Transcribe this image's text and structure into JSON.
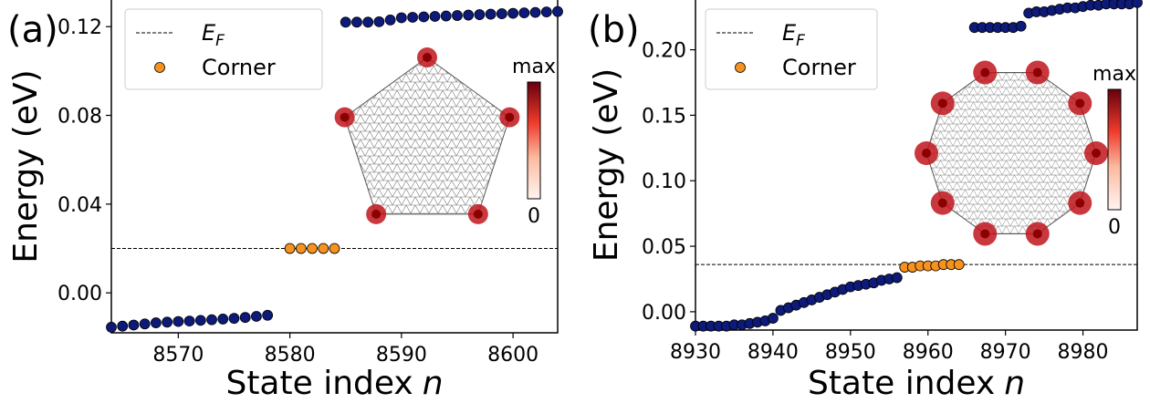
{
  "chart_data": [
    {
      "panel_label": "(a)",
      "type": "scatter",
      "xlabel": "State index",
      "xlabel_var": "n",
      "ylabel": "Energy (eV)",
      "xlim": [
        8564,
        8604
      ],
      "ylim": [
        -0.018,
        0.132
      ],
      "xticks": [
        8570,
        8580,
        8590,
        8600
      ],
      "yticks": [
        0.0,
        0.04,
        0.08,
        0.12
      ],
      "ytick_labels": [
        "0.00",
        "0.04",
        "0.08",
        "0.12"
      ],
      "fermi_level": 0.02,
      "legend": {
        "placement": "top-left",
        "entries": [
          "E_F",
          "Corner"
        ]
      },
      "series": [
        {
          "role": "bulk",
          "color": "#0d1a7a",
          "x": [
            8564,
            8565,
            8566,
            8567,
            8568,
            8569,
            8570,
            8571,
            8572,
            8573,
            8574,
            8575,
            8576,
            8577,
            8578,
            8585,
            8586,
            8587,
            8588,
            8589,
            8590,
            8591,
            8592,
            8593,
            8594,
            8595,
            8596,
            8597,
            8598,
            8599,
            8600,
            8601,
            8602,
            8603,
            8604
          ],
          "y": [
            -0.0155,
            -0.015,
            -0.0145,
            -0.014,
            -0.0135,
            -0.0132,
            -0.0129,
            -0.0127,
            -0.0124,
            -0.0121,
            -0.0118,
            -0.0115,
            -0.0111,
            -0.0106,
            -0.0101,
            0.122,
            0.122,
            0.122,
            0.1222,
            0.123,
            0.124,
            0.1242,
            0.1244,
            0.1246,
            0.1248,
            0.125,
            0.1252,
            0.1254,
            0.1256,
            0.1258,
            0.126,
            0.1262,
            0.1264,
            0.1266,
            0.1268
          ]
        },
        {
          "role": "corner",
          "name": "Corner",
          "color": "#f6921e",
          "x": [
            8580,
            8581,
            8582,
            8583,
            8584
          ],
          "y": [
            0.02,
            0.02,
            0.02,
            0.02,
            0.02
          ]
        }
      ],
      "inset": {
        "shape": "pentagon",
        "colorbar_max": "max",
        "colorbar_min": "0"
      }
    },
    {
      "panel_label": "(b)",
      "type": "scatter",
      "xlabel": "State index",
      "xlabel_var": "n",
      "ylabel": "Energy (eV)",
      "xlim": [
        8930,
        8987
      ],
      "ylim": [
        -0.014,
        0.238
      ],
      "xticks": [
        8930,
        8940,
        8950,
        8960,
        8970,
        8980
      ],
      "yticks": [
        0.0,
        0.05,
        0.1,
        0.15,
        0.2
      ],
      "ytick_labels": [
        "0.00",
        "0.05",
        "0.10",
        "0.15",
        "0.20"
      ],
      "fermi_level": 0.036,
      "legend": {
        "placement": "top-left",
        "entries": [
          "E_F",
          "Corner"
        ]
      },
      "series": [
        {
          "role": "bulk",
          "color": "#0d1a7a",
          "x": [
            8930,
            8931,
            8932,
            8933,
            8934,
            8935,
            8936,
            8937,
            8938,
            8939,
            8940,
            8941,
            8942,
            8943,
            8944,
            8945,
            8946,
            8947,
            8948,
            8949,
            8950,
            8951,
            8952,
            8953,
            8954,
            8955,
            8956,
            8966,
            8967,
            8968,
            8969,
            8970,
            8971,
            8972,
            8973,
            8974,
            8975,
            8976,
            8977,
            8978,
            8979,
            8980,
            8981,
            8982,
            8983,
            8984,
            8985,
            8986,
            8987
          ],
          "y": [
            -0.011,
            -0.011,
            -0.011,
            -0.011,
            -0.011,
            -0.01,
            -0.01,
            -0.009,
            -0.008,
            -0.007,
            -0.005,
            0.001,
            0.003,
            0.005,
            0.007,
            0.009,
            0.011,
            0.013,
            0.015,
            0.017,
            0.019,
            0.02,
            0.021,
            0.022,
            0.024,
            0.025,
            0.026,
            0.217,
            0.217,
            0.217,
            0.217,
            0.217,
            0.217,
            0.218,
            0.228,
            0.229,
            0.229,
            0.23,
            0.231,
            0.232,
            0.232,
            0.233,
            0.234,
            0.234,
            0.235,
            0.235,
            0.235,
            0.235,
            0.236
          ]
        },
        {
          "role": "corner",
          "name": "Corner",
          "color": "#f6921e",
          "x": [
            8957,
            8958,
            8959,
            8960,
            8961,
            8962,
            8963,
            8964
          ],
          "y": [
            0.034,
            0.034,
            0.035,
            0.035,
            0.035,
            0.036,
            0.036,
            0.036
          ]
        }
      ],
      "inset": {
        "shape": "decagon",
        "colorbar_max": "max",
        "colorbar_min": "0"
      }
    }
  ]
}
